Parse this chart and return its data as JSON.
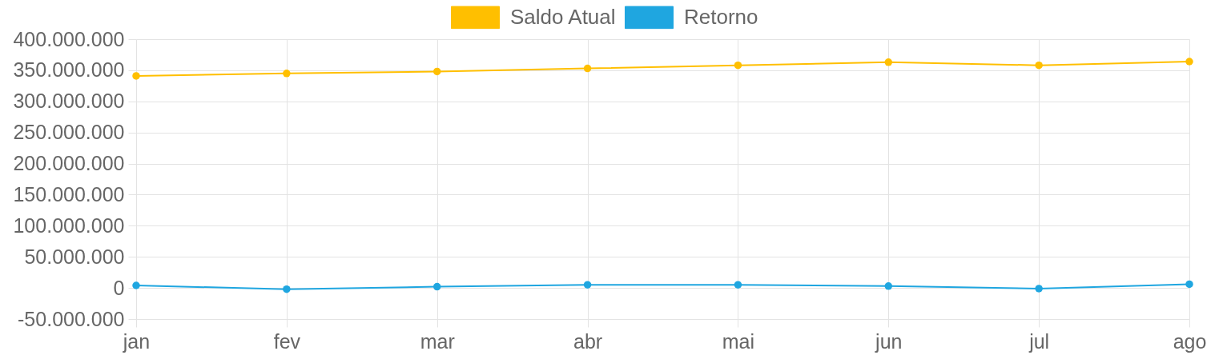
{
  "chart_data": {
    "type": "line",
    "categories": [
      "jan",
      "fev",
      "mar",
      "abr",
      "mai",
      "jun",
      "jul",
      "ago"
    ],
    "series": [
      {
        "name": "Saldo Atual",
        "color": "#ffbf00",
        "values": [
          341000000,
          345000000,
          348000000,
          353000000,
          358000000,
          363000000,
          358000000,
          364000000
        ]
      },
      {
        "name": "Retorno",
        "color": "#1fa6e0",
        "values": [
          4000000,
          -2000000,
          2000000,
          5000000,
          5000000,
          3000000,
          -1000000,
          6000000
        ]
      }
    ],
    "ylim": [
      -50000000,
      400000000
    ],
    "yticks": [
      {
        "value": -50000000,
        "label": "-50.000.000"
      },
      0,
      {
        "value": 50000000,
        "label": "50.000.000"
      },
      {
        "value": 100000000,
        "label": "100.000.000"
      },
      {
        "value": 150000000,
        "label": "150.000.000"
      },
      {
        "value": 200000000,
        "label": "200.000.000"
      },
      {
        "value": 250000000,
        "label": "250.000.000"
      },
      {
        "value": 300000000,
        "label": "300.000.000"
      },
      {
        "value": 350000000,
        "label": "350.000.000"
      },
      {
        "value": 400000000,
        "label": "400.000.000"
      }
    ],
    "grid": true,
    "legend": "top",
    "marker": "circle",
    "line_style": "solid"
  }
}
